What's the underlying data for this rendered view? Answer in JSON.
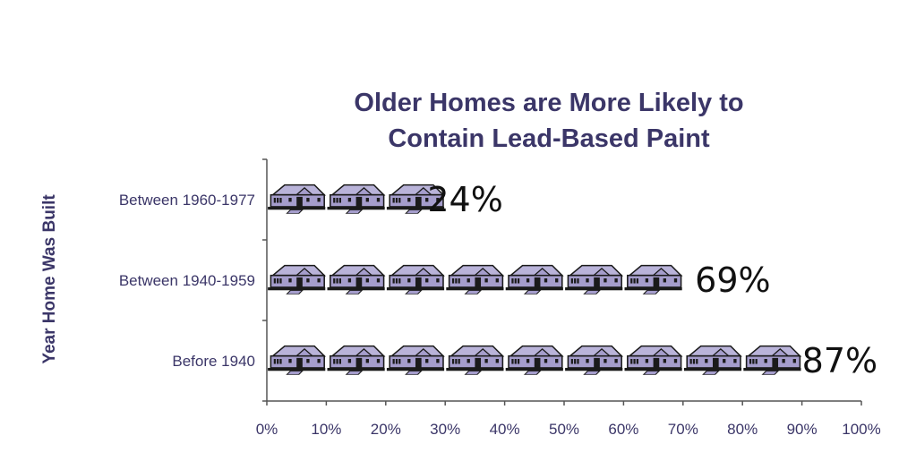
{
  "chart_data": {
    "type": "bar",
    "title": [
      "Older Homes are More Likely to",
      "Contain Lead-Based Paint"
    ],
    "xlabel": "",
    "ylabel": "Year Home Was Built",
    "categories": [
      "Between 1960-1977",
      "Between 1940-1959",
      "Before 1940"
    ],
    "values": [
      24,
      69,
      87
    ],
    "value_labels": [
      "24%",
      "69%",
      "87%"
    ],
    "xlim": [
      0,
      100
    ],
    "xticks": [
      "0%",
      "10%",
      "20%",
      "30%",
      "40%",
      "50%",
      "60%",
      "70%",
      "80%",
      "90%",
      "100%"
    ],
    "orientation": "horizontal",
    "bar_style": "pictogram",
    "icon": "house-icon",
    "icon_unit": 10,
    "colors": {
      "house_roof": "#b9b3d9",
      "house_wall": "#a59dcc",
      "house_outline": "#1a1a1a",
      "text": "#3b3668"
    },
    "grid": false,
    "legend": "none"
  }
}
